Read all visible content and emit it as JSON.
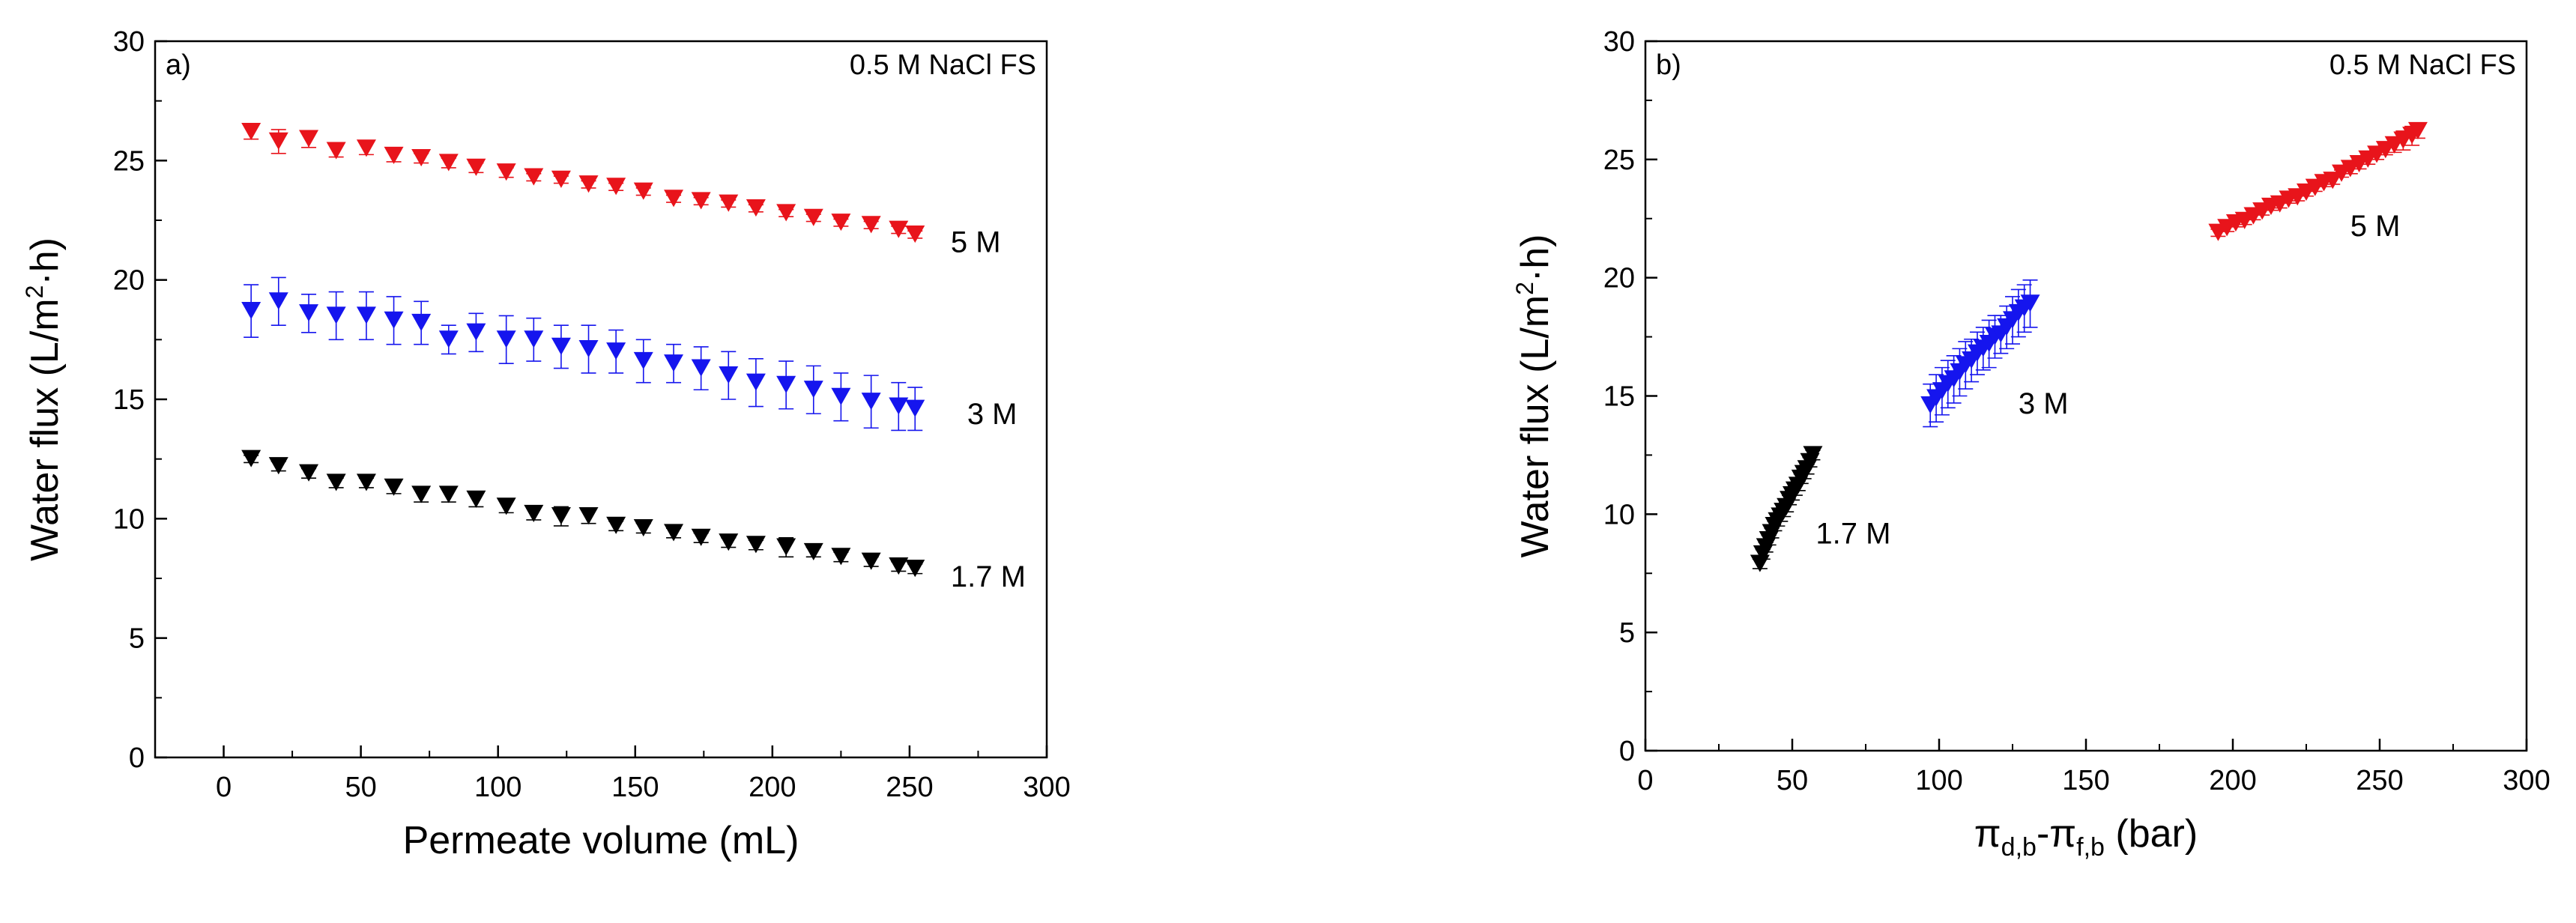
{
  "chart_data": [
    {
      "panel": "a)",
      "type": "scatter",
      "annotation": "0.5 M NaCl FS",
      "xlabel": "Permeate volume (mL)",
      "ylabel_main": "Water flux (L/m",
      "ylabel_sup": "2",
      "ylabel_tail": "·h)",
      "xlim": [
        -25,
        300
      ],
      "ylim": [
        0,
        30
      ],
      "xticks": [
        0,
        50,
        100,
        150,
        200,
        250,
        300
      ],
      "yticks": [
        0,
        5,
        10,
        15,
        20,
        25,
        30
      ],
      "series": [
        {
          "name": "5 M",
          "color": "#e8141b",
          "x": [
            10,
            20,
            31,
            41,
            52,
            62,
            72,
            82,
            92,
            103,
            113,
            123,
            133,
            143,
            153,
            164,
            174,
            184,
            194,
            205,
            215,
            225,
            236,
            246,
            252
          ],
          "y": [
            26.2,
            25.8,
            25.9,
            25.4,
            25.5,
            25.2,
            25.1,
            24.9,
            24.7,
            24.5,
            24.3,
            24.2,
            24.0,
            23.9,
            23.7,
            23.4,
            23.3,
            23.2,
            23.0,
            22.8,
            22.6,
            22.4,
            22.3,
            22.1,
            21.9
          ],
          "err": [
            0.3,
            0.5,
            0.35,
            0.25,
            0.25,
            0.25,
            0.2,
            0.2,
            0.2,
            0.2,
            0.15,
            0.15,
            0.15,
            0.15,
            0.15,
            0.15,
            0.15,
            0.15,
            0.15,
            0.15,
            0.15,
            0.15,
            0.15,
            0.15,
            0.15
          ],
          "label_x": 265,
          "label_y": 21.6
        },
        {
          "name": "3 M",
          "color": "#1515ee",
          "x": [
            10,
            20,
            31,
            41,
            52,
            62,
            72,
            82,
            92,
            103,
            113,
            123,
            133,
            143,
            153,
            164,
            174,
            184,
            194,
            205,
            215,
            225,
            236,
            246,
            252
          ],
          "y": [
            18.7,
            19.1,
            18.6,
            18.5,
            18.5,
            18.3,
            18.2,
            17.5,
            17.8,
            17.5,
            17.5,
            17.2,
            17.1,
            17.0,
            16.6,
            16.5,
            16.3,
            16.0,
            15.7,
            15.6,
            15.4,
            15.1,
            14.9,
            14.7,
            14.6
          ],
          "err": [
            1.1,
            1.0,
            0.8,
            1.0,
            1.0,
            1.0,
            0.9,
            0.6,
            0.8,
            1.0,
            0.9,
            0.9,
            1.0,
            0.9,
            0.9,
            0.8,
            0.9,
            1.0,
            1.0,
            1.0,
            1.0,
            1.0,
            1.1,
            1.0,
            0.9
          ],
          "label_x": 271,
          "label_y": 14.4
        },
        {
          "name": "1.7 M",
          "color": "#000000",
          "x": [
            10,
            20,
            31,
            41,
            52,
            62,
            72,
            82,
            92,
            103,
            113,
            123,
            133,
            143,
            153,
            164,
            174,
            184,
            194,
            205,
            215,
            225,
            236,
            246,
            252
          ],
          "y": [
            12.5,
            12.2,
            11.9,
            11.5,
            11.5,
            11.3,
            11.0,
            11.0,
            10.8,
            10.5,
            10.2,
            10.1,
            10.1,
            9.7,
            9.6,
            9.4,
            9.2,
            9.0,
            8.9,
            8.8,
            8.6,
            8.4,
            8.2,
            8.0,
            7.9
          ],
          "err": [
            0.15,
            0.2,
            0.2,
            0.2,
            0.2,
            0.25,
            0.3,
            0.3,
            0.3,
            0.25,
            0.25,
            0.4,
            0.3,
            0.2,
            0.2,
            0.2,
            0.2,
            0.2,
            0.2,
            0.4,
            0.2,
            0.2,
            0.2,
            0.2,
            0.2
          ],
          "label_x": 265,
          "label_y": 7.6
        }
      ]
    },
    {
      "panel": "b)",
      "type": "scatter",
      "annotation": "0.5 M NaCl FS",
      "xlabel_main": "π",
      "xlabel_sub1": "d,b",
      "xlabel_mid": "-π",
      "xlabel_sub2": "f,b",
      "xlabel_tail": " (bar)",
      "ylabel_main": "Water flux (L/m",
      "ylabel_sup": "2",
      "ylabel_tail": "·h)",
      "xlim": [
        0,
        300
      ],
      "ylim": [
        0,
        30
      ],
      "xticks": [
        0,
        50,
        100,
        150,
        200,
        250,
        300
      ],
      "yticks": [
        0,
        5,
        10,
        15,
        20,
        25,
        30
      ],
      "series": [
        {
          "name": "5 M",
          "color": "#e8141b",
          "x": [
            195,
            198,
            201,
            204,
            207,
            210,
            213,
            216,
            219,
            222,
            225,
            228,
            231,
            234,
            237,
            240,
            243,
            246,
            249,
            252,
            255,
            258,
            261,
            263
          ],
          "y": [
            21.9,
            22.1,
            22.3,
            22.4,
            22.6,
            22.8,
            23.0,
            23.1,
            23.3,
            23.4,
            23.6,
            23.8,
            24.0,
            24.1,
            24.4,
            24.6,
            24.8,
            25.0,
            25.2,
            25.4,
            25.6,
            25.8,
            26.0,
            26.2
          ],
          "err": [
            0.15,
            0.15,
            0.15,
            0.15,
            0.15,
            0.15,
            0.15,
            0.15,
            0.15,
            0.15,
            0.15,
            0.15,
            0.15,
            0.15,
            0.15,
            0.2,
            0.2,
            0.2,
            0.2,
            0.2,
            0.3,
            0.4,
            0.4,
            0.3
          ],
          "label_x": 240,
          "label_y": 22.2
        },
        {
          "name": "3 M",
          "color": "#1515ee",
          "x": [
            97,
            99,
            101,
            103,
            105,
            107,
            109,
            111,
            113,
            115,
            117,
            119,
            121,
            123,
            125,
            127,
            129,
            131
          ],
          "y": [
            14.6,
            14.9,
            15.2,
            15.5,
            15.7,
            16.0,
            16.3,
            16.5,
            16.8,
            17.0,
            17.2,
            17.5,
            17.6,
            17.9,
            18.2,
            18.5,
            18.7,
            18.9
          ],
          "err": [
            0.9,
            1.0,
            1.0,
            1.0,
            1.0,
            1.0,
            1.0,
            0.9,
            0.9,
            0.9,
            1.0,
            0.9,
            0.8,
            0.9,
            1.0,
            1.0,
            1.0,
            1.0
          ],
          "label_x": 127,
          "label_y": 14.7
        },
        {
          "name": "1.7 M",
          "color": "#000000",
          "x": [
            39,
            40,
            41,
            42,
            43,
            44,
            45,
            46,
            47,
            48,
            49,
            50,
            51,
            52,
            53,
            54,
            55,
            56,
            57
          ],
          "y": [
            7.9,
            8.3,
            8.6,
            8.9,
            9.2,
            9.5,
            9.7,
            9.9,
            10.1,
            10.3,
            10.6,
            10.8,
            11.0,
            11.2,
            11.5,
            11.7,
            11.9,
            12.2,
            12.5
          ],
          "err": [
            0.2,
            0.2,
            0.2,
            0.2,
            0.2,
            0.2,
            0.2,
            0.2,
            0.2,
            0.2,
            0.2,
            0.2,
            0.2,
            0.2,
            0.2,
            0.2,
            0.2,
            0.2,
            0.2
          ],
          "label_x": 58,
          "label_y": 9.2
        }
      ]
    }
  ]
}
